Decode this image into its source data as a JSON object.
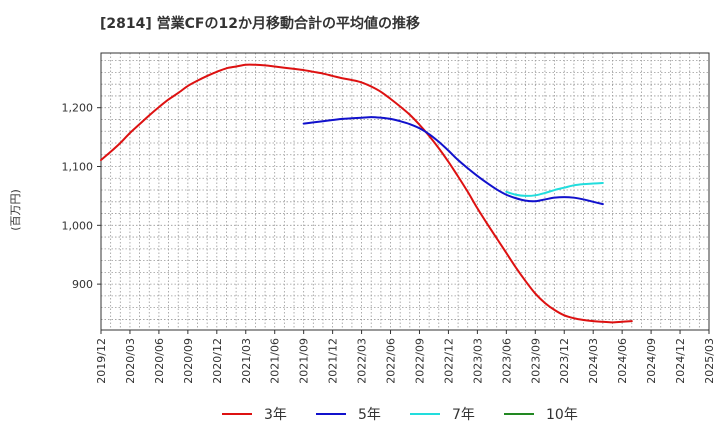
{
  "chart_data": {
    "type": "line",
    "title": "[2814]  営業CFの12か月移動合計の平均値の推移",
    "ylabel": "(百万円)",
    "xlabel": "",
    "ylim": [
      822,
      1293
    ],
    "yticks": [
      900,
      1000,
      1100,
      1200
    ],
    "ytick_labels": [
      "900",
      "1,000",
      "1,100",
      "1,200"
    ],
    "x_start": "2019-12",
    "x_end": "2025-03",
    "xtick_labels": [
      "2019/12",
      "2020/03",
      "2020/06",
      "2020/09",
      "2020/12",
      "2021/03",
      "2021/06",
      "2021/09",
      "2021/12",
      "2022/03",
      "2022/06",
      "2022/09",
      "2022/12",
      "2023/03",
      "2023/06",
      "2023/09",
      "2023/12",
      "2024/03",
      "2024/06",
      "2024/09",
      "2024/12",
      "2025/03"
    ],
    "grid": true,
    "legend_position": "bottom",
    "series": [
      {
        "name": "3年",
        "color": "#dd1111",
        "points": [
          [
            "2019-12",
            1111
          ],
          [
            "2020-01",
            1125
          ],
          [
            "2020-02",
            1140
          ],
          [
            "2020-03",
            1157
          ],
          [
            "2020-04",
            1172
          ],
          [
            "2020-05",
            1187
          ],
          [
            "2020-06",
            1201
          ],
          [
            "2020-07",
            1214
          ],
          [
            "2020-08",
            1225
          ],
          [
            "2020-09",
            1237
          ],
          [
            "2020-10",
            1246
          ],
          [
            "2020-11",
            1254
          ],
          [
            "2020-12",
            1261
          ],
          [
            "2021-01",
            1267
          ],
          [
            "2021-02",
            1270
          ],
          [
            "2021-03",
            1273
          ],
          [
            "2021-04",
            1273
          ],
          [
            "2021-05",
            1272
          ],
          [
            "2021-06",
            1270
          ],
          [
            "2021-07",
            1268
          ],
          [
            "2021-08",
            1266
          ],
          [
            "2021-09",
            1264
          ],
          [
            "2021-10",
            1261
          ],
          [
            "2021-11",
            1258
          ],
          [
            "2021-12",
            1254
          ],
          [
            "2022-01",
            1250
          ],
          [
            "2022-02",
            1247
          ],
          [
            "2022-03",
            1243
          ],
          [
            "2022-04",
            1236
          ],
          [
            "2022-05",
            1227
          ],
          [
            "2022-06",
            1215
          ],
          [
            "2022-07",
            1202
          ],
          [
            "2022-08",
            1188
          ],
          [
            "2022-09",
            1171
          ],
          [
            "2022-10",
            1152
          ],
          [
            "2022-11",
            1131
          ],
          [
            "2022-12",
            1108
          ],
          [
            "2023-01",
            1083
          ],
          [
            "2023-02",
            1057
          ],
          [
            "2023-03",
            1029
          ],
          [
            "2023-04",
            1003
          ],
          [
            "2023-05",
            978
          ],
          [
            "2023-06",
            953
          ],
          [
            "2023-07",
            928
          ],
          [
            "2023-08",
            905
          ],
          [
            "2023-09",
            884
          ],
          [
            "2023-10",
            868
          ],
          [
            "2023-11",
            856
          ],
          [
            "2023-12",
            847
          ],
          [
            "2024-01",
            842
          ],
          [
            "2024-02",
            839
          ],
          [
            "2024-03",
            837
          ],
          [
            "2024-04",
            836
          ],
          [
            "2024-05",
            835
          ],
          [
            "2024-06",
            836
          ],
          [
            "2024-07",
            837
          ]
        ]
      },
      {
        "name": "5年",
        "color": "#1111cc",
        "points": [
          [
            "2021-09",
            1173
          ],
          [
            "2021-10",
            1175
          ],
          [
            "2021-11",
            1177
          ],
          [
            "2021-12",
            1179
          ],
          [
            "2022-01",
            1181
          ],
          [
            "2022-02",
            1182
          ],
          [
            "2022-03",
            1183
          ],
          [
            "2022-04",
            1184
          ],
          [
            "2022-05",
            1183
          ],
          [
            "2022-06",
            1181
          ],
          [
            "2022-07",
            1177
          ],
          [
            "2022-08",
            1172
          ],
          [
            "2022-09",
            1165
          ],
          [
            "2022-10",
            1155
          ],
          [
            "2022-11",
            1142
          ],
          [
            "2022-12",
            1127
          ],
          [
            "2023-01",
            1111
          ],
          [
            "2023-02",
            1097
          ],
          [
            "2023-03",
            1084
          ],
          [
            "2023-04",
            1072
          ],
          [
            "2023-05",
            1061
          ],
          [
            "2023-06",
            1052
          ],
          [
            "2023-07",
            1046
          ],
          [
            "2023-08",
            1042
          ],
          [
            "2023-09",
            1041
          ],
          [
            "2023-10",
            1044
          ],
          [
            "2023-11",
            1047
          ],
          [
            "2023-12",
            1048
          ],
          [
            "2024-01",
            1047
          ],
          [
            "2024-02",
            1044
          ],
          [
            "2024-03",
            1040
          ],
          [
            "2024-04",
            1036
          ]
        ]
      },
      {
        "name": "7年",
        "color": "#22dddd",
        "points": [
          [
            "2023-06",
            1057
          ],
          [
            "2023-07",
            1052
          ],
          [
            "2023-08",
            1050
          ],
          [
            "2023-09",
            1051
          ],
          [
            "2023-10",
            1055
          ],
          [
            "2023-11",
            1060
          ],
          [
            "2023-12",
            1064
          ],
          [
            "2024-01",
            1068
          ],
          [
            "2024-02",
            1070
          ],
          [
            "2024-03",
            1071
          ],
          [
            "2024-04",
            1072
          ]
        ]
      },
      {
        "name": "10年",
        "color": "#228822",
        "points": []
      }
    ]
  }
}
